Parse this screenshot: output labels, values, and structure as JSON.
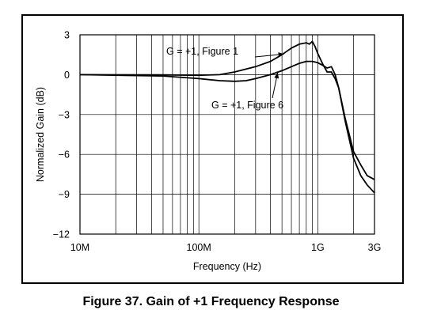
{
  "caption": "Figure 37.  Gain of +1 Frequency Response",
  "chart_data": {
    "type": "line",
    "xlabel": "Frequency (Hz)",
    "ylabel": "Normalized Gain (dB)",
    "xscale": "log",
    "xlim": [
      10000000,
      3000000000
    ],
    "ylim": [
      -12,
      3
    ],
    "x_ticks": [
      {
        "value": 10000000,
        "label": "10M"
      },
      {
        "value": 100000000,
        "label": "100M"
      },
      {
        "value": 1000000000,
        "label": "1G"
      },
      {
        "value": 3000000000,
        "label": "3G"
      }
    ],
    "y_ticks": [
      {
        "value": 3,
        "label": "3"
      },
      {
        "value": 0,
        "label": "0"
      },
      {
        "value": -3,
        "label": "−3"
      },
      {
        "value": -6,
        "label": "−6"
      },
      {
        "value": -9,
        "label": "−9"
      },
      {
        "value": -12,
        "label": "−12"
      }
    ],
    "grid": true,
    "series": [
      {
        "name": "G = +1, Figure 1",
        "color": "#000000",
        "x": [
          10000000,
          50000000,
          100000000,
          150000000,
          200000000,
          300000000,
          400000000,
          500000000,
          600000000,
          700000000,
          800000000,
          850000000,
          900000000,
          950000000,
          1000000000,
          1100000000,
          1200000000,
          1300000000,
          1400000000,
          1500000000,
          1700000000,
          2000000000,
          2300000000,
          2600000000,
          3000000000
        ],
        "y": [
          0,
          -0.02,
          -0.05,
          0,
          0.2,
          0.6,
          1.0,
          1.5,
          2.0,
          2.3,
          2.4,
          2.3,
          2.5,
          2.1,
          1.6,
          0.8,
          0.2,
          0.2,
          -0.3,
          -1.0,
          -3.3,
          -5.8,
          -6.8,
          -7.6,
          -7.9
        ]
      },
      {
        "name": "G = +1, Figure 6",
        "color": "#000000",
        "x": [
          10000000,
          50000000,
          100000000,
          150000000,
          200000000,
          250000000,
          300000000,
          400000000,
          500000000,
          600000000,
          700000000,
          800000000,
          900000000,
          1000000000,
          1100000000,
          1200000000,
          1300000000,
          1400000000,
          1500000000,
          1700000000,
          2000000000,
          2300000000,
          2600000000,
          3000000000
        ],
        "y": [
          0,
          -0.1,
          -0.3,
          -0.45,
          -0.5,
          -0.45,
          -0.3,
          0,
          0.3,
          0.6,
          0.85,
          1.0,
          1.0,
          0.9,
          0.7,
          0.5,
          0.6,
          0.0,
          -1.0,
          -3.5,
          -6.3,
          -7.6,
          -8.3,
          -8.9
        ]
      }
    ],
    "annotations": [
      {
        "text": "G = +1, Figure 1",
        "series": 0
      },
      {
        "text": "G = +1, Figure 6",
        "series": 1
      }
    ]
  }
}
